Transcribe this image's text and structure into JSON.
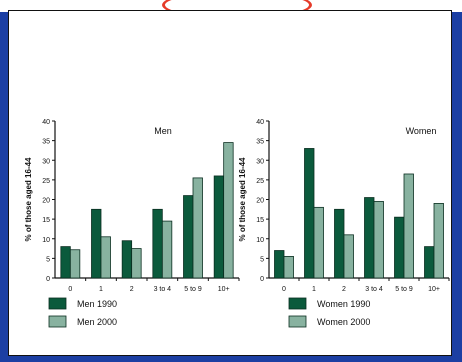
{
  "header": {
    "left_text": "",
    "right_text": ""
  },
  "colors": {
    "series_1990": "#0b5a3c",
    "series_2000": "#88b2a0",
    "annotation_oval": "#e53b2a",
    "background": "#1c3fa3"
  },
  "chart_data": [
    {
      "type": "bar",
      "title": "Men",
      "ylabel": "% of those aged 16-44",
      "xlabel": "",
      "ylim": [
        0,
        40
      ],
      "yticks": [
        0,
        5,
        10,
        15,
        20,
        25,
        30,
        35,
        40
      ],
      "categories": [
        "0",
        "1",
        "2",
        "3 to 4",
        "5 to 9",
        "10+"
      ],
      "series": [
        {
          "name": "Men 1990",
          "values": [
            8,
            17.5,
            9.5,
            17.5,
            21,
            26
          ]
        },
        {
          "name": "Men 2000",
          "values": [
            7.2,
            10.5,
            7.5,
            14.5,
            25.5,
            34.5
          ]
        }
      ],
      "legend_position": "bottom-left"
    },
    {
      "type": "bar",
      "title": "Women",
      "ylabel": "% of those aged 16-44",
      "xlabel": "",
      "ylim": [
        0,
        40
      ],
      "yticks": [
        0,
        5,
        10,
        15,
        20,
        25,
        30,
        35,
        40
      ],
      "categories": [
        "0",
        "1",
        "2",
        "3 to 4",
        "5 to 9",
        "10+"
      ],
      "series": [
        {
          "name": "Women 1990",
          "values": [
            7,
            33,
            17.5,
            20.5,
            15.5,
            8
          ]
        },
        {
          "name": "Women 2000",
          "values": [
            5.5,
            18,
            11,
            19.5,
            26.5,
            19
          ]
        }
      ],
      "legend_position": "bottom-left"
    }
  ]
}
